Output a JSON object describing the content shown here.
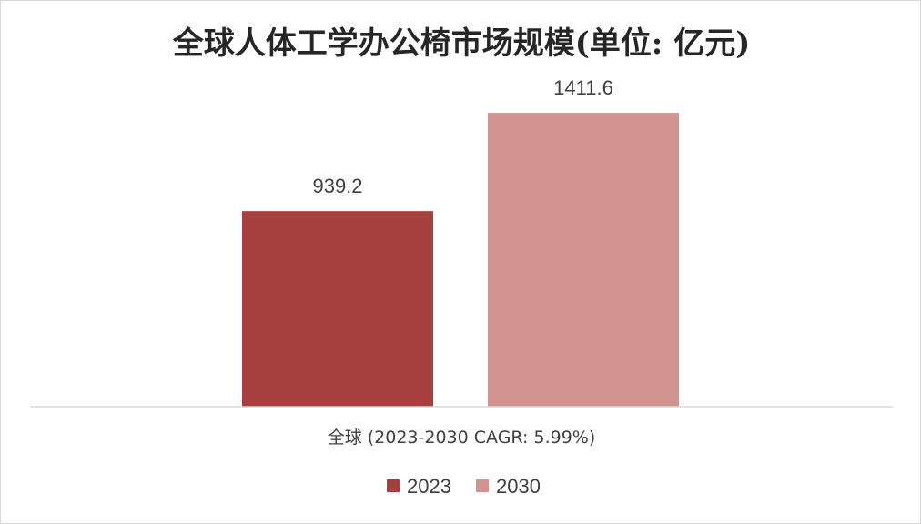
{
  "chart_data": {
    "type": "bar",
    "title": "全球人体工学办公椅市场规模(单位: 亿元)",
    "categories": [
      "全球 (2023-2030 CAGR: 5.99%)"
    ],
    "series": [
      {
        "name": "2023",
        "values": [
          939.2
        ],
        "color": "#a5403e"
      },
      {
        "name": "2030",
        "values": [
          1411.6
        ],
        "color": "#d09390"
      }
    ],
    "data_labels": [
      "939.2",
      "1411.6"
    ],
    "xlabel": "",
    "ylabel": "",
    "ylim": [
      0,
      1600
    ],
    "grid": false,
    "legend": "bottom",
    "axis_color": "#d9d9d9"
  }
}
